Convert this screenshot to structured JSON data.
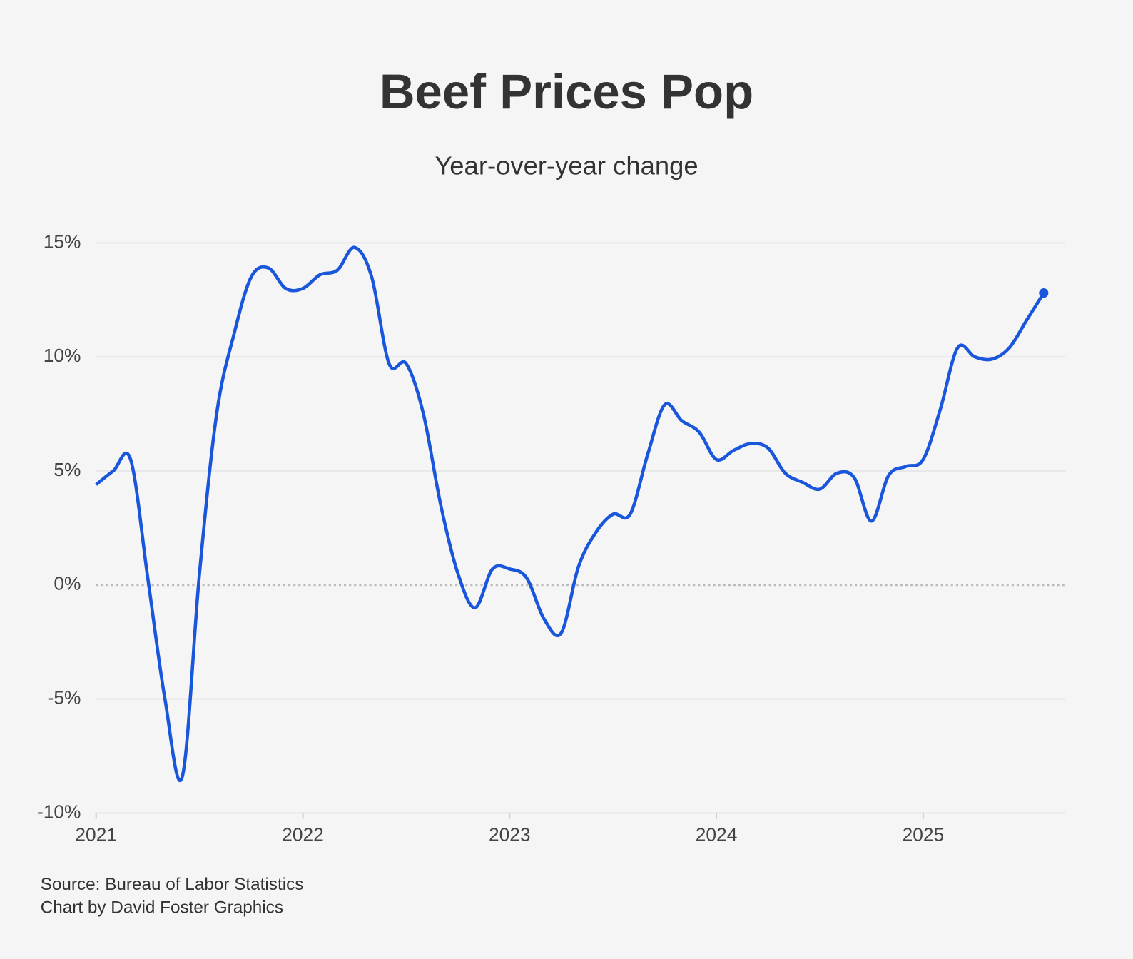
{
  "chart_data": {
    "type": "line",
    "title": "Beef Prices Pop",
    "subtitle": "Year-over-year change",
    "source": "Source: Bureau of Labor Statistics",
    "credit": "Chart by David Foster Graphics",
    "x": [
      2021,
      2021.083,
      2021.167,
      2021.25,
      2021.333,
      2021.417,
      2021.5,
      2021.583,
      2021.667,
      2021.75,
      2021.833,
      2021.917,
      2022,
      2022.083,
      2022.167,
      2022.25,
      2022.333,
      2022.417,
      2022.5,
      2022.583,
      2022.667,
      2022.75,
      2022.833,
      2022.917,
      2023,
      2023.083,
      2023.167,
      2023.25,
      2023.333,
      2023.417,
      2023.5,
      2023.583,
      2023.667,
      2023.75,
      2023.833,
      2023.917,
      2024,
      2024.083,
      2024.167,
      2024.25,
      2024.333,
      2024.417,
      2024.5,
      2024.583,
      2024.667,
      2024.75,
      2024.833,
      2024.917,
      2025,
      2025.083,
      2025.167,
      2025.25,
      2025.333,
      2025.417,
      2025.5,
      2025.583
    ],
    "series": [
      {
        "color": "#1a56db",
        "values": [
          4.4,
          5.0,
          5.5,
          0.3,
          -5.0,
          -8.4,
          0.5,
          7.5,
          11.0,
          13.5,
          13.9,
          13.0,
          13.0,
          13.6,
          13.8,
          14.8,
          13.5,
          9.7,
          9.7,
          7.5,
          3.5,
          0.5,
          -1.0,
          0.7,
          0.7,
          0.3,
          -1.5,
          -2.1,
          0.8,
          2.3,
          3.1,
          3.1,
          5.7,
          7.9,
          7.2,
          6.7,
          5.5,
          5.9,
          6.2,
          6.0,
          4.9,
          4.5,
          4.2,
          4.9,
          4.7,
          2.8,
          4.8,
          5.2,
          5.5,
          7.7,
          10.4,
          10.0,
          9.9,
          10.4,
          11.6,
          12.8
        ]
      }
    ],
    "xlim": [
      2021,
      2025.69
    ],
    "xticks": [
      2021,
      2022,
      2023,
      2024,
      2025
    ],
    "ylim": [
      -10,
      15
    ],
    "yticks": [
      {
        "value": -10,
        "label": "-10%"
      },
      {
        "value": -5,
        "label": "-5%"
      },
      {
        "value": 0,
        "label": "0%"
      },
      {
        "value": 5,
        "label": "5%"
      },
      {
        "value": 10,
        "label": "10%"
      },
      {
        "value": 15,
        "label": "15%"
      }
    ],
    "grid": true
  }
}
